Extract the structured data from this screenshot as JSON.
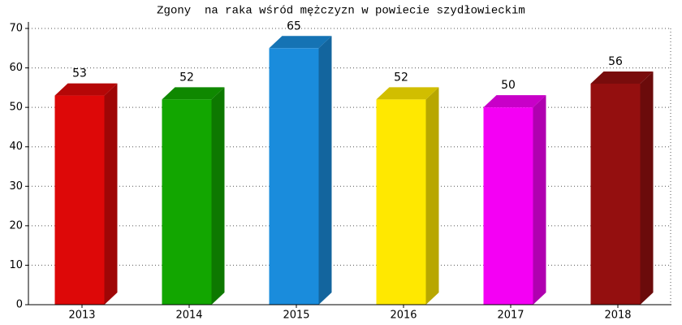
{
  "chart_data": {
    "type": "bar3d",
    "title": "Zgony  na raka wśród mężczyzn w powiecie szydłowieckim",
    "categories": [
      "2013",
      "2014",
      "2015",
      "2016",
      "2017",
      "2018"
    ],
    "values": [
      53,
      52,
      65,
      52,
      50,
      56
    ],
    "colors": [
      "#dd0808",
      "#12a600",
      "#1a8cdc",
      "#ffe800",
      "#f400f4",
      "#940f0f"
    ],
    "ylim": [
      0,
      70
    ],
    "yticks": [
      0,
      10,
      20,
      30,
      40,
      50,
      60,
      70
    ],
    "grid": true
  }
}
